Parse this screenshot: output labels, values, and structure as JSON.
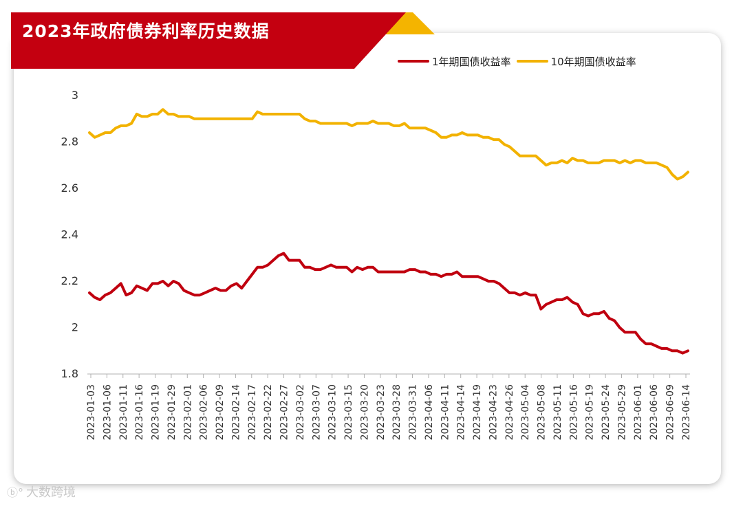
{
  "title": "2023年政府债券利率历史数据",
  "watermark": "大数跨境",
  "colors": {
    "banner": "#c40010",
    "accent": "#f4b400",
    "series_1y": "#c0000f",
    "series_10y": "#f2b200"
  },
  "chart_data": {
    "type": "line",
    "title": "2023年政府债券利率历史数据",
    "xlabel": "",
    "ylabel": "",
    "ylim": [
      1.8,
      3.0
    ],
    "yticks": [
      3,
      2.8,
      2.6,
      2.4,
      2.2,
      2,
      1.8
    ],
    "grid": false,
    "legend_position": "top-right",
    "x_tick_labels": [
      "2023-01-03",
      "2023-01-06",
      "2023-01-11",
      "2023-01-16",
      "2023-01-19",
      "2023-01-29",
      "2023-02-01",
      "2023-02-06",
      "2023-02-09",
      "2023-02-14",
      "2023-02-17",
      "2023-02-22",
      "2023-02-27",
      "2023-03-02",
      "2023-03-07",
      "2023-03-10",
      "2023-03-15",
      "2023-03-20",
      "2023-03-23",
      "2023-03-28",
      "2023-03-31",
      "2023-04-06",
      "2023-04-11",
      "2023-04-14",
      "2023-04-19",
      "2023-04-23",
      "2023-04-26",
      "2023-05-04",
      "2023-05-08",
      "2023-05-11",
      "2023-05-16",
      "2023-05-19",
      "2023-05-24",
      "2023-05-29",
      "2023-06-01",
      "2023-06-06",
      "2023-06-09",
      "2023-06-14"
    ],
    "points_count": 115,
    "series": [
      {
        "name": "1年期国债收益率",
        "color": "#c0000f",
        "values": [
          2.15,
          2.13,
          2.12,
          2.14,
          2.15,
          2.17,
          2.19,
          2.14,
          2.15,
          2.18,
          2.17,
          2.16,
          2.19,
          2.19,
          2.2,
          2.18,
          2.2,
          2.19,
          2.16,
          2.15,
          2.14,
          2.14,
          2.15,
          2.16,
          2.17,
          2.16,
          2.16,
          2.18,
          2.19,
          2.17,
          2.2,
          2.23,
          2.26,
          2.26,
          2.27,
          2.29,
          2.31,
          2.32,
          2.29,
          2.29,
          2.29,
          2.26,
          2.26,
          2.25,
          2.25,
          2.26,
          2.27,
          2.26,
          2.26,
          2.26,
          2.24,
          2.26,
          2.25,
          2.26,
          2.26,
          2.24,
          2.24,
          2.24,
          2.24,
          2.24,
          2.24,
          2.25,
          2.25,
          2.24,
          2.24,
          2.23,
          2.23,
          2.22,
          2.23,
          2.23,
          2.24,
          2.22,
          2.22,
          2.22,
          2.22,
          2.21,
          2.2,
          2.2,
          2.19,
          2.17,
          2.15,
          2.15,
          2.14,
          2.15,
          2.14,
          2.14,
          2.08,
          2.1,
          2.11,
          2.12,
          2.12,
          2.13,
          2.11,
          2.1,
          2.06,
          2.05,
          2.06,
          2.06,
          2.07,
          2.04,
          2.03,
          2.0,
          1.98,
          1.98,
          1.98,
          1.95,
          1.93,
          1.93,
          1.92,
          1.91,
          1.91,
          1.9,
          1.9,
          1.89,
          1.9
        ]
      },
      {
        "name": "10年期国债收益率",
        "color": "#f2b200",
        "values": [
          2.84,
          2.82,
          2.83,
          2.84,
          2.84,
          2.86,
          2.87,
          2.87,
          2.88,
          2.92,
          2.91,
          2.91,
          2.92,
          2.92,
          2.94,
          2.92,
          2.92,
          2.91,
          2.91,
          2.91,
          2.9,
          2.9,
          2.9,
          2.9,
          2.9,
          2.9,
          2.9,
          2.9,
          2.9,
          2.9,
          2.9,
          2.9,
          2.93,
          2.92,
          2.92,
          2.92,
          2.92,
          2.92,
          2.92,
          2.92,
          2.92,
          2.9,
          2.89,
          2.89,
          2.88,
          2.88,
          2.88,
          2.88,
          2.88,
          2.88,
          2.87,
          2.88,
          2.88,
          2.88,
          2.89,
          2.88,
          2.88,
          2.88,
          2.87,
          2.87,
          2.88,
          2.86,
          2.86,
          2.86,
          2.86,
          2.85,
          2.84,
          2.82,
          2.82,
          2.83,
          2.83,
          2.84,
          2.83,
          2.83,
          2.83,
          2.82,
          2.82,
          2.81,
          2.81,
          2.79,
          2.78,
          2.76,
          2.74,
          2.74,
          2.74,
          2.74,
          2.72,
          2.7,
          2.71,
          2.71,
          2.72,
          2.71,
          2.73,
          2.72,
          2.72,
          2.71,
          2.71,
          2.71,
          2.72,
          2.72,
          2.72,
          2.71,
          2.72,
          2.71,
          2.72,
          2.72,
          2.71,
          2.71,
          2.71,
          2.7,
          2.69,
          2.66,
          2.64,
          2.65,
          2.67
        ]
      }
    ]
  }
}
